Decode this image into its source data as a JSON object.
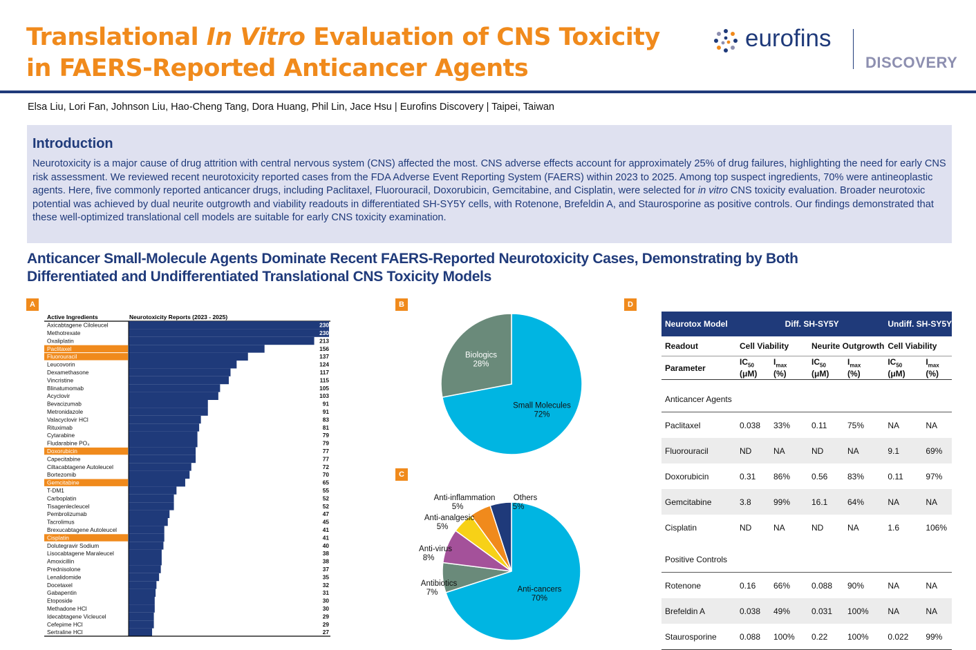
{
  "header": {
    "title_pre": "Translational ",
    "title_italic": "In Vitro",
    "title_post": " Evaluation of CNS Toxicity",
    "title_line2": "in FAERS-Reported Anticancer Agents",
    "logo_text": "eurofins",
    "logo_sub": "DISCOVERY",
    "authors": "Elsa Liu, Lori Fan, Johnson Liu, Hao-Cheng Tang, Dora Huang, Phil Lin, Jace Hsu  |  Eurofins Discovery | Taipei, Taiwan",
    "accent_color": "#f08a1c",
    "brand_color": "#1f3a7a"
  },
  "intro": {
    "heading": "Introduction",
    "body_1": "Neurotoxicity is a major cause of drug attrition with central nervous system (CNS) affected the most. CNS adverse effects account for approximately 25% of drug failures, highlighting the need for early CNS risk assessment. We reviewed recent neurotoxicity reported cases from the FDA Adverse Event Reporting System (FAERS) within 2023 to 2025. Among top suspect ingredients, 70% were antineoplastic agents. Here, five commonly reported anticancer drugs, including Paclitaxel, Fluorouracil, Doxorubicin, Gemcitabine, and Cisplatin, were selected for ",
    "body_italic": "in vitro",
    "body_2": " CNS toxicity evaluation. Broader neurotoxic potential was achieved by dual neurite outgrowth and viability readouts in differentiated SH-SY5Y cells, with Rotenone, Brefeldin A, and Staurosporine as positive controls. Our findings demonstrated that these well-optimized translational cell models are suitable for early CNS toxicity examination."
  },
  "section": {
    "line1": "Anticancer Small-Molecule Agents Dominate Recent FAERS-Reported Neurotoxicity Cases, Demonstrating by Both",
    "line2": "Differentiated and Undifferentiated Translational CNS Toxicity Models"
  },
  "panels": {
    "a": "A",
    "b": "B",
    "c": "C",
    "d": "D"
  },
  "chart_data": [
    {
      "type": "bar",
      "orientation": "horizontal",
      "col_header_1": "Active Ingredients",
      "col_header_2": "Neurotoxicity Reports (2023 - 2025)",
      "categories": [
        "Axicabtagene Ciloleucel",
        "Methotrexate",
        "Oxaliplatin",
        "Paclitaxel",
        "Fluorouracil",
        "Leucovorin",
        "Dexamethasone",
        "Vincristine",
        "Blinatumomab",
        "Acyclovir",
        "Bevacizumab",
        "Metronidazole",
        "Valacyclovir HCl",
        "Rituximab",
        "Cytarabine",
        "Fludarabine PO₄",
        "Doxorubicin",
        "Capecitabine",
        "Ciltacabtagene Autoleucel",
        "Bortezomib",
        "Gemcitabine",
        "T-DM1",
        "Carboplatin",
        "Tisagenlecleucel",
        "Pembrolizumab",
        "Tacrolimus",
        "Brexucabtagene Autoleucel",
        "Cisplatin",
        "Dolutegravir Sodium",
        "Lisocabtagene Maraleucel",
        "Amoxicillin",
        "Prednisolone",
        "Lenalidomide",
        "Docetaxel",
        "Gabapentin",
        "Etoposide",
        "Methadone HCl",
        "Idecabtagene Vicleucel",
        "Cefepime HCl",
        "Sertraline HCl"
      ],
      "values": [
        230,
        230,
        213,
        156,
        137,
        124,
        117,
        115,
        105,
        103,
        91,
        91,
        83,
        81,
        79,
        79,
        77,
        77,
        72,
        70,
        65,
        55,
        52,
        52,
        47,
        45,
        41,
        41,
        40,
        38,
        38,
        37,
        35,
        32,
        31,
        30,
        30,
        29,
        29,
        27
      ],
      "highlighted": [
        "Paclitaxel",
        "Fluorouracil",
        "Doxorubicin",
        "Gemcitabine",
        "Cisplatin"
      ],
      "bar_color": "#1f3a7a",
      "highlight_color": "#f08a1c",
      "xlim": [
        0,
        230
      ]
    },
    {
      "type": "pie",
      "slices": [
        {
          "label": "Small Molecules",
          "pct_label": "72%",
          "value": 72,
          "color": "#00b5e2"
        },
        {
          "label": "Biologics",
          "pct_label": "28%",
          "value": 28,
          "color": "#6a8a7a"
        }
      ]
    },
    {
      "type": "pie",
      "slices": [
        {
          "label": "Anti-cancers",
          "pct_label": "70%",
          "value": 70,
          "color": "#00b5e2"
        },
        {
          "label": "Antibiotics",
          "pct_label": "7%",
          "value": 7,
          "color": "#6a8a7a"
        },
        {
          "label": "Anti-virus",
          "pct_label": "8%",
          "value": 8,
          "color": "#a4519a"
        },
        {
          "label": "Anti-analgesic",
          "pct_label": "5%",
          "value": 5,
          "color": "#f7d117"
        },
        {
          "label": "Anti-inflammation",
          "pct_label": "5%",
          "value": 5,
          "color": "#f08a1c"
        },
        {
          "label": "Others",
          "pct_label": "5%",
          "value": 5,
          "color": "#1f3a7a"
        }
      ]
    },
    {
      "type": "table",
      "head": {
        "c0": "Neurotox Model",
        "c1": "Diff. SH-SY5Y",
        "c2": "Undiff. SH-SY5Y"
      },
      "readout": {
        "c0": "Readout",
        "c1": "Cell Viability",
        "c2": "Neurite Outgrowth",
        "c3": "Cell Viability"
      },
      "parameter": {
        "c0": "Parameter",
        "ic": "IC",
        "ic_sub": "50",
        "ic_unit": "(μM)",
        "im": "I",
        "im_sub": "max",
        "im_unit": "(%)"
      },
      "groups": [
        {
          "name": "Anticancer Agents",
          "rows": [
            [
              "Paclitaxel",
              "0.038",
              "33%",
              "0.11",
              "75%",
              "NA",
              "NA"
            ],
            [
              "Fluorouracil",
              "ND",
              "NA",
              "ND",
              "NA",
              "9.1",
              "69%"
            ],
            [
              "Doxorubicin",
              "0.31",
              "86%",
              "0.56",
              "83%",
              "0.11",
              "97%"
            ],
            [
              "Gemcitabine",
              "3.8",
              "99%",
              "16.1",
              "64%",
              "NA",
              "NA"
            ],
            [
              "Cisplatin",
              "ND",
              "NA",
              "ND",
              "NA",
              "1.6",
              "106%"
            ]
          ]
        },
        {
          "name": "Positive Controls",
          "rows": [
            [
              "Rotenone",
              "0.16",
              "66%",
              "0.088",
              "90%",
              "NA",
              "NA"
            ],
            [
              "Brefeldin A",
              "0.038",
              "49%",
              "0.031",
              "100%",
              "NA",
              "NA"
            ],
            [
              "Staurosporine",
              "0.088",
              "100%",
              "0.22",
              "100%",
              "0.022",
              "99%"
            ]
          ]
        }
      ]
    }
  ]
}
